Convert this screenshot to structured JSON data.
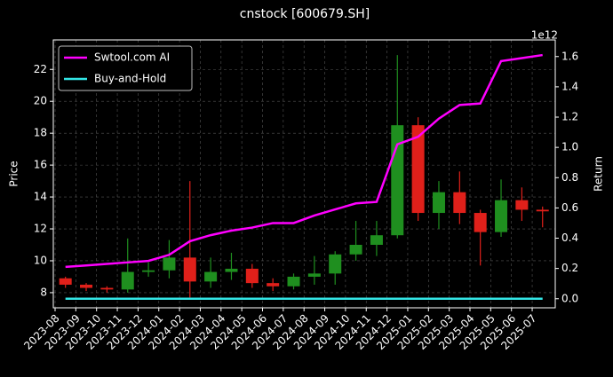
{
  "chart_data": {
    "type": "candlestick",
    "title": "cnstock [600679.SH]",
    "y_label": "Price",
    "y2_label": "Return",
    "y2_offset_label": "1e12",
    "x": [
      "2023-08",
      "2023-09",
      "2023-10",
      "2023-11",
      "2023-12",
      "2024-01",
      "2024-02",
      "2024-03",
      "2024-04",
      "2024-05",
      "2024-06",
      "2024-07",
      "2024-08",
      "2024-09",
      "2024-10",
      "2024-11",
      "2024-12",
      "2025-01",
      "2025-02",
      "2025-03",
      "2025-04",
      "2025-05",
      "2025-06",
      "2025-07"
    ],
    "open": [
      8.9,
      8.5,
      8.3,
      8.2,
      9.3,
      9.4,
      10.2,
      8.7,
      9.3,
      9.5,
      8.6,
      8.4,
      9.0,
      9.2,
      10.4,
      11.0,
      11.6,
      18.5,
      13.0,
      14.3,
      13.0,
      11.8,
      13.8,
      13.2
    ],
    "high": [
      9.0,
      8.6,
      8.4,
      11.4,
      9.9,
      11.3,
      15.0,
      10.2,
      10.5,
      9.8,
      8.9,
      9.2,
      10.3,
      10.6,
      12.5,
      12.5,
      22.9,
      19.0,
      15.0,
      15.6,
      13.2,
      15.1,
      14.6,
      13.4
    ],
    "low": [
      8.3,
      8.1,
      8.0,
      8.0,
      9.0,
      8.9,
      7.7,
      8.3,
      8.8,
      8.3,
      8.1,
      8.2,
      8.5,
      8.5,
      10.0,
      10.3,
      11.4,
      12.5,
      12.0,
      12.3,
      9.7,
      11.5,
      12.5,
      12.1
    ],
    "close": [
      8.5,
      8.3,
      8.2,
      9.3,
      9.4,
      10.2,
      8.7,
      9.3,
      9.5,
      8.6,
      8.4,
      9.0,
      9.2,
      10.4,
      11.0,
      11.6,
      18.5,
      13.0,
      14.3,
      13.0,
      11.8,
      13.8,
      13.2,
      13.1
    ],
    "up_color": "#1f8f1f",
    "down_color": "#e0201a",
    "series": [
      {
        "name": "Swtool.com AI",
        "color": "#ff00ff",
        "axis": "y2",
        "values": [
          0.21,
          0.22,
          0.23,
          0.24,
          0.25,
          0.29,
          0.38,
          0.42,
          0.45,
          0.47,
          0.5,
          0.5,
          0.55,
          0.59,
          0.63,
          0.64,
          1.02,
          1.07,
          1.19,
          1.28,
          1.29,
          1.57,
          1.59,
          1.61
        ]
      },
      {
        "name": "Buy-and-Hold",
        "color": "#33e6e6",
        "axis": "y2",
        "values": [
          0,
          0,
          0,
          0,
          0,
          0,
          0,
          0,
          0,
          0,
          0,
          0,
          0,
          0,
          0,
          0,
          0,
          0,
          0,
          0,
          0,
          0,
          0,
          0
        ]
      }
    ],
    "ylim": [
      7.05,
      23.85
    ],
    "yticks": [
      8,
      10,
      12,
      14,
      16,
      18,
      20,
      22
    ],
    "y2lim": [
      -0.06,
      1.71
    ],
    "y2ticks": [
      {
        "value": 0,
        "label": "0.0"
      },
      {
        "value": 0.2,
        "label": "0.2"
      },
      {
        "value": 0.4,
        "label": "0.4"
      },
      {
        "value": 0.6,
        "label": "0.6"
      },
      {
        "value": 0.8,
        "label": "0.8"
      },
      {
        "value": 1.0,
        "label": "1.0"
      },
      {
        "value": 1.2,
        "label": "1.2"
      },
      {
        "value": 1.4,
        "label": "1.4"
      },
      {
        "value": 1.6,
        "label": "1.6"
      }
    ],
    "grid": true,
    "legend": "upper left"
  }
}
